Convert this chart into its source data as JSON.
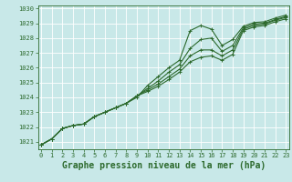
{
  "title": "Graphe pression niveau de la mer (hPa)",
  "background_color": "#c8e8e8",
  "grid_color": "#ffffff",
  "line_color": "#2d6a2d",
  "xlim": [
    0,
    23
  ],
  "ylim": [
    1020.5,
    1030.2
  ],
  "yticks": [
    1021,
    1022,
    1023,
    1024,
    1025,
    1026,
    1027,
    1028,
    1029,
    1030
  ],
  "xticks": [
    0,
    1,
    2,
    3,
    4,
    5,
    6,
    7,
    8,
    9,
    10,
    11,
    12,
    13,
    14,
    15,
    16,
    17,
    18,
    19,
    20,
    21,
    22,
    23
  ],
  "series": [
    [
      1020.8,
      1021.2,
      1021.9,
      1022.1,
      1022.2,
      1022.7,
      1023.0,
      1023.3,
      1023.6,
      1024.0,
      1024.8,
      1025.4,
      1026.0,
      1026.5,
      1028.5,
      1028.85,
      1028.6,
      1027.5,
      1027.9,
      1028.8,
      1029.05,
      1029.1,
      1029.35,
      1029.55
    ],
    [
      1020.8,
      1021.2,
      1021.9,
      1022.1,
      1022.2,
      1022.7,
      1023.0,
      1023.3,
      1023.6,
      1024.1,
      1024.6,
      1025.1,
      1025.7,
      1026.2,
      1027.3,
      1027.9,
      1028.0,
      1027.1,
      1027.5,
      1028.7,
      1028.95,
      1029.0,
      1029.25,
      1029.45
    ],
    [
      1020.8,
      1021.2,
      1021.9,
      1022.1,
      1022.2,
      1022.7,
      1023.0,
      1023.3,
      1023.6,
      1024.1,
      1024.5,
      1024.9,
      1025.4,
      1025.9,
      1026.8,
      1027.2,
      1027.2,
      1026.8,
      1027.2,
      1028.6,
      1028.85,
      1028.95,
      1029.2,
      1029.4
    ],
    [
      1020.8,
      1021.2,
      1021.9,
      1022.1,
      1022.2,
      1022.7,
      1023.0,
      1023.3,
      1023.6,
      1024.1,
      1024.4,
      1024.75,
      1025.2,
      1025.7,
      1026.4,
      1026.7,
      1026.8,
      1026.5,
      1026.9,
      1028.5,
      1028.75,
      1028.85,
      1029.1,
      1029.3
    ]
  ],
  "marker": "+",
  "markersize": 3,
  "linewidth": 0.8,
  "title_fontsize": 7,
  "tick_fontsize": 5,
  "ylabel_fontsize": 6
}
